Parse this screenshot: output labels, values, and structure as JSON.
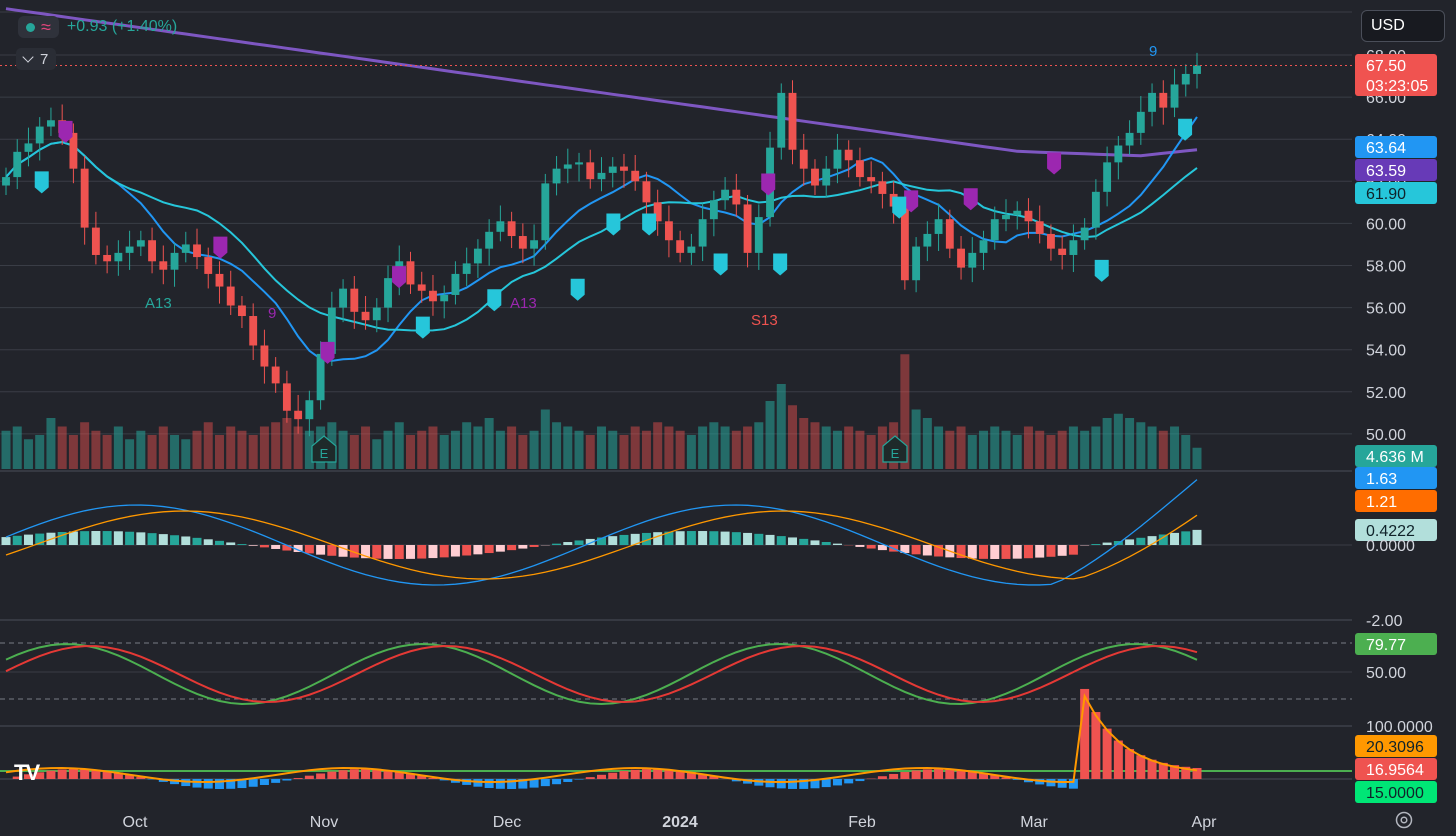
{
  "header": {
    "change_text": "+0.93 (+1.40%)",
    "collapse_count": "7",
    "currency": "USD"
  },
  "price_labels": {
    "last_price": "67.50",
    "countdown": "03:23:05",
    "ma_fast": "63.64",
    "ma_slow": "63.59",
    "ma_mid": "61.90",
    "volume": "4.636 M"
  },
  "macd_labels": {
    "macd": "1.63",
    "signal": "1.21",
    "histogram": "0.4222"
  },
  "stoch_label": "79.77",
  "adx_labels": {
    "a": "20.3096",
    "b": "16.9564",
    "c": "15.0000"
  },
  "annotations": {
    "a13_left": "A13",
    "a13_mid": "A13",
    "s13": "S13",
    "nine_left": "9",
    "nine_right": "9",
    "earnings": "E"
  },
  "colors": {
    "up": "#26a69a",
    "down": "#ef5350",
    "ma_purple": "#7e57c2",
    "ma_blue": "#2196f3",
    "ma_cyan": "#26c6da",
    "bg": "#22242b"
  },
  "chart_data": {
    "type": "candlestick",
    "x_tick_labels": [
      "Oct",
      "Nov",
      "Dec",
      "2024",
      "Feb",
      "Mar",
      "Apr"
    ],
    "price_axis": {
      "ticks": [
        "68.00",
        "66.00",
        "64.00",
        "62.00",
        "60.00",
        "58.00",
        "56.00",
        "54.00",
        "52.00",
        "50.00"
      ],
      "range": [
        49,
        70
      ]
    },
    "close_series": [
      62.2,
      63.4,
      63.8,
      64.6,
      64.9,
      64.3,
      62.6,
      59.8,
      58.5,
      58.2,
      58.6,
      58.9,
      59.2,
      58.2,
      57.8,
      58.6,
      59.0,
      58.4,
      57.6,
      57.0,
      56.1,
      55.6,
      54.2,
      53.2,
      52.4,
      51.1,
      50.7,
      51.6,
      53.8,
      56.0,
      56.9,
      55.8,
      55.4,
      56.0,
      57.4,
      58.2,
      57.1,
      56.8,
      56.3,
      56.6,
      57.6,
      58.1,
      58.8,
      59.6,
      60.1,
      59.4,
      58.8,
      59.2,
      61.9,
      62.6,
      62.8,
      62.9,
      62.1,
      62.4,
      62.7,
      62.5,
      62.0,
      61.0,
      60.1,
      59.2,
      58.6,
      58.9,
      60.2,
      61.1,
      61.6,
      60.9,
      58.6,
      60.3,
      63.6,
      66.2,
      63.5,
      62.6,
      61.8,
      62.6,
      63.5,
      63.0,
      62.2,
      62.0,
      61.4,
      60.8,
      57.3,
      58.9,
      59.5,
      60.2,
      58.8,
      57.9,
      58.6,
      59.2,
      60.2,
      60.4,
      60.6,
      60.1,
      59.5,
      58.8,
      58.5,
      59.2,
      59.8,
      61.5,
      62.9,
      63.7,
      64.3,
      65.3,
      66.2,
      65.5,
      66.6,
      67.1,
      67.5
    ],
    "macd": {
      "zero_label": "0.0000",
      "low_label": "-2.00"
    },
    "stochastic": {
      "tick": "50.00",
      "value": 79.77
    },
    "adx": {
      "tick": "100.0000"
    }
  }
}
